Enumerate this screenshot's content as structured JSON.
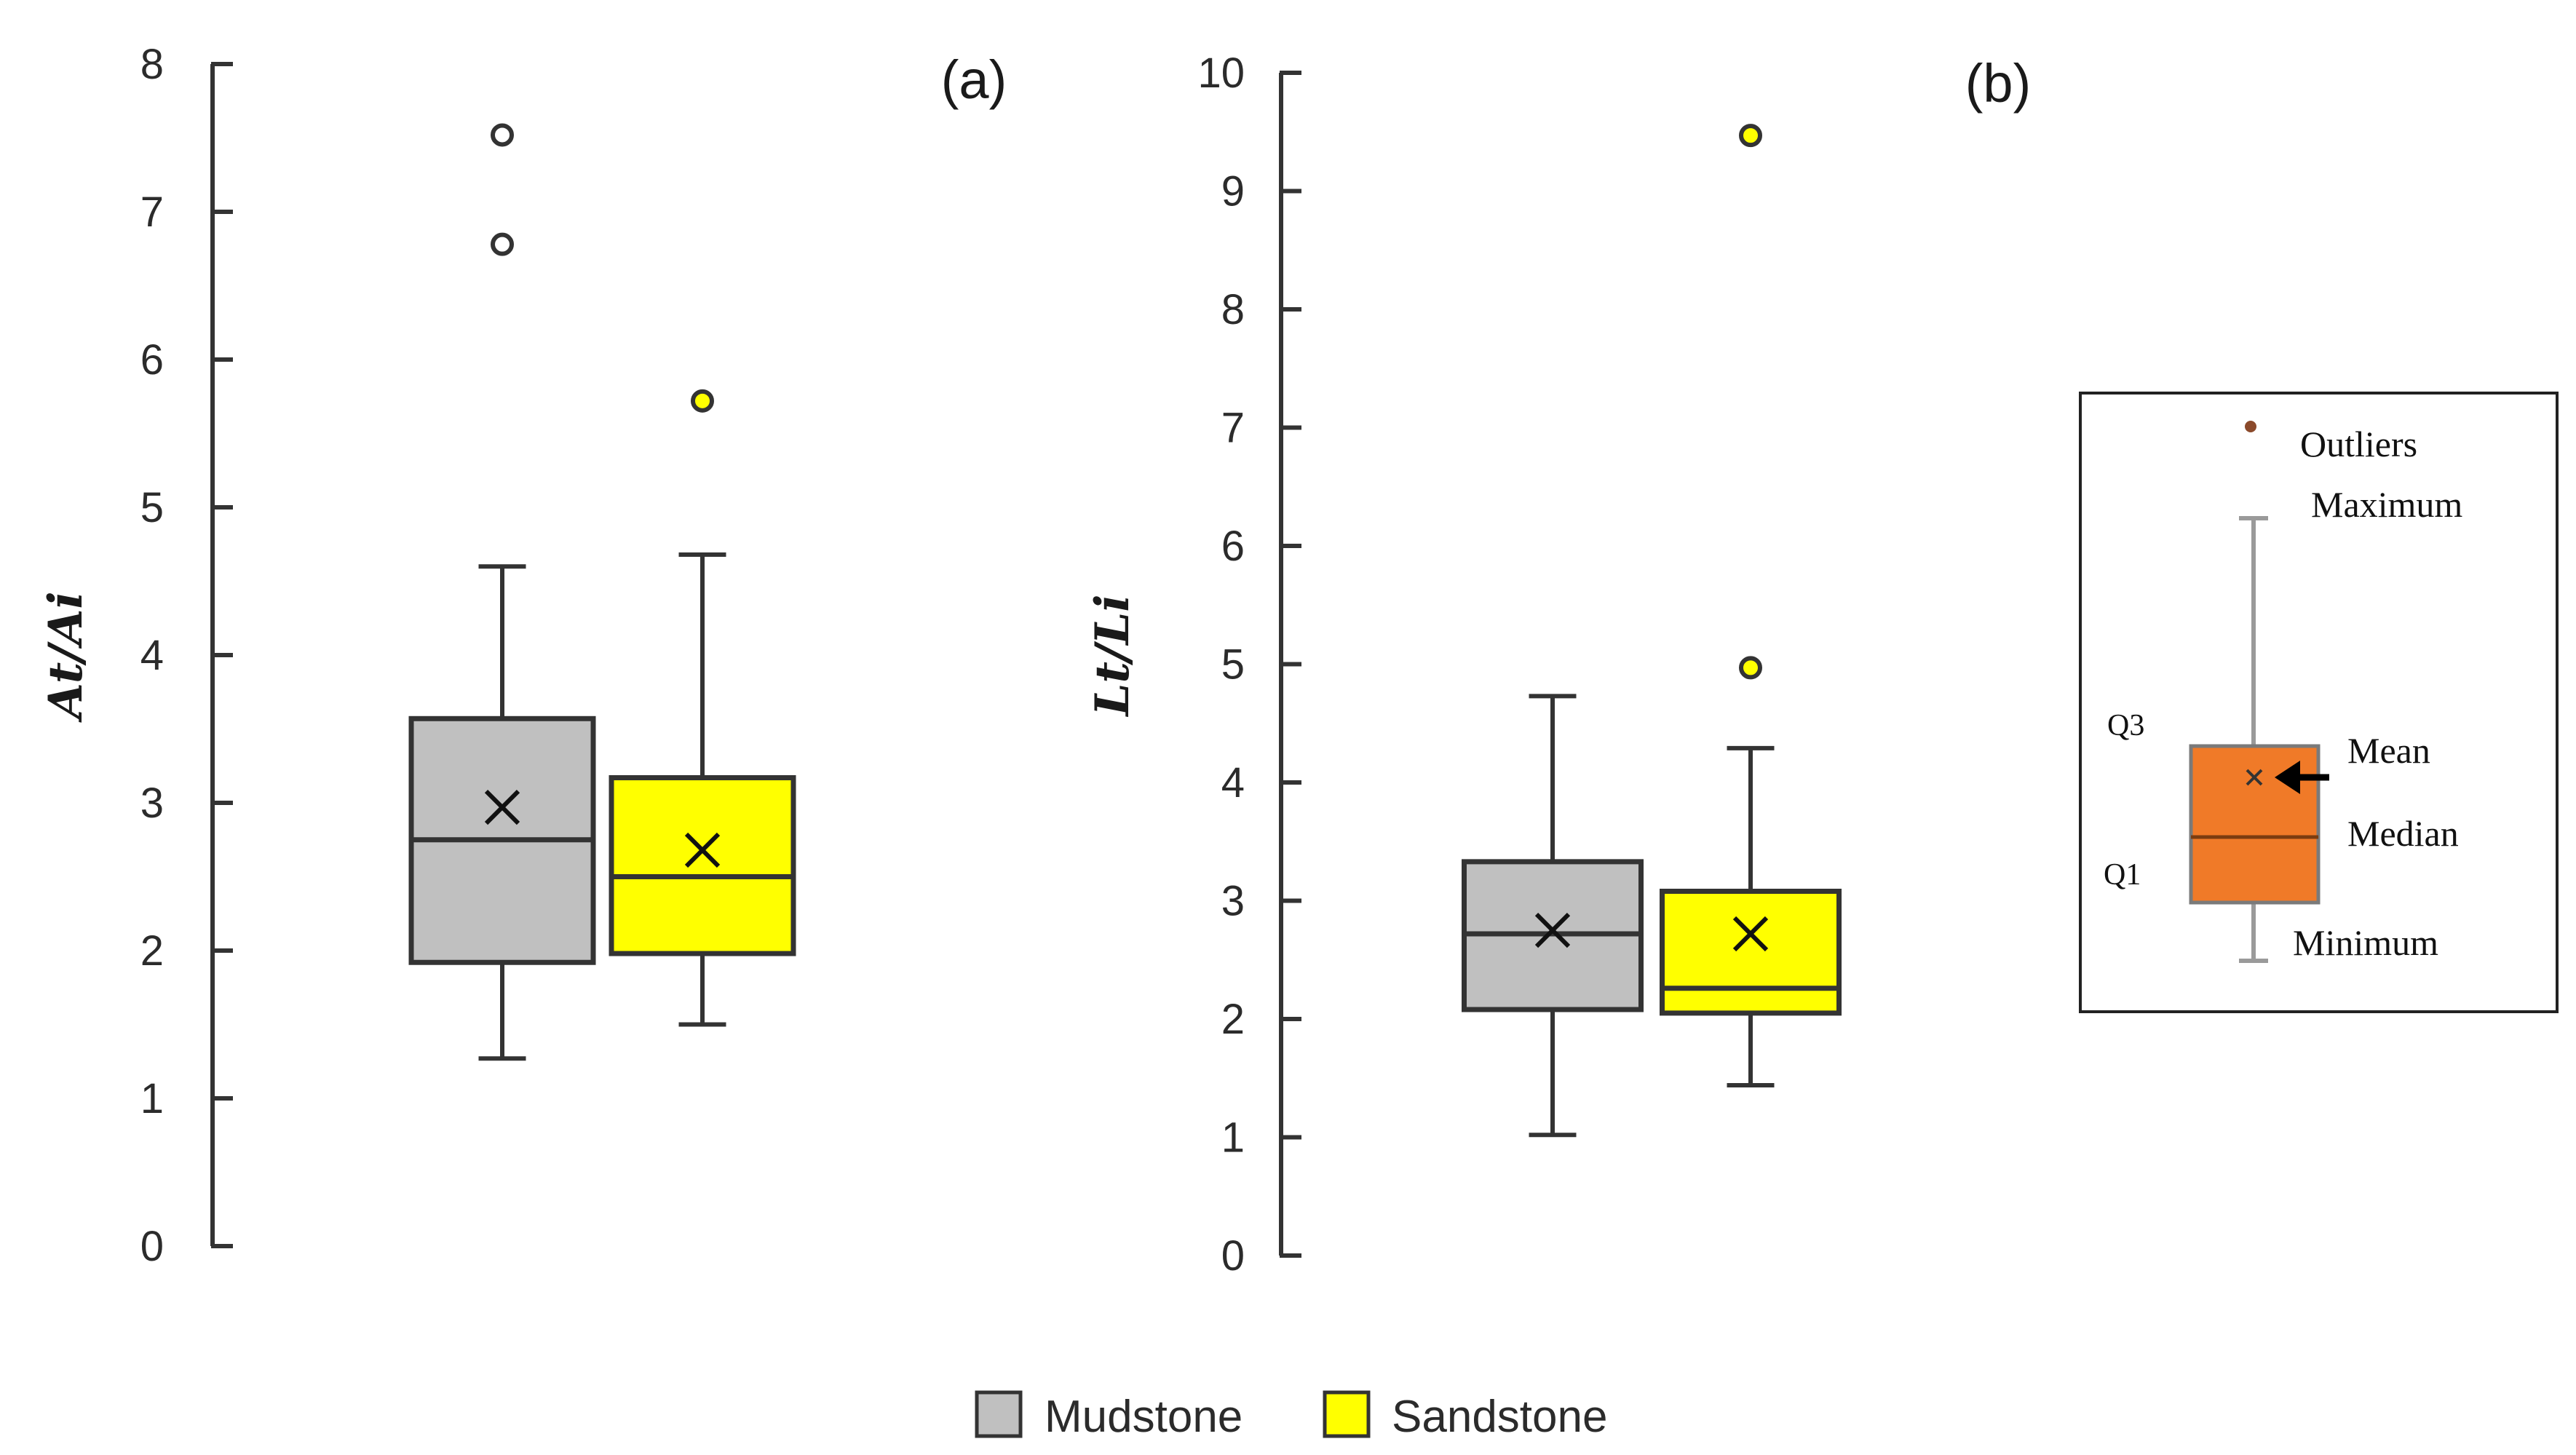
{
  "chart_data": [
    {
      "type": "box",
      "panel_label": "(a)",
      "ylabel": "At/Ai",
      "ylim": [
        0,
        8
      ],
      "yticks": [
        "0",
        "1",
        "2",
        "3",
        "4",
        "5",
        "6",
        "7",
        "8"
      ],
      "series": [
        {
          "name": "Mudstone",
          "min": 1.27,
          "q1": 1.92,
          "median": 2.75,
          "q3": 3.57,
          "max": 4.6,
          "mean": 2.97,
          "outliers": [
            6.78,
            7.52
          ]
        },
        {
          "name": "Sandstone",
          "min": 1.5,
          "q1": 1.98,
          "median": 2.5,
          "q3": 3.17,
          "max": 4.68,
          "mean": 2.68,
          "outliers": [
            5.72
          ]
        }
      ]
    },
    {
      "type": "box",
      "panel_label": "(b)",
      "ylabel": "Lt/Li",
      "ylim": [
        0,
        10
      ],
      "yticks": [
        "0",
        "1",
        "2",
        "3",
        "4",
        "5",
        "6",
        "7",
        "8",
        "9",
        "10"
      ],
      "series": [
        {
          "name": "Mudstone",
          "min": 1.02,
          "q1": 2.08,
          "median": 2.72,
          "q3": 3.33,
          "max": 4.73,
          "mean": 2.75,
          "outliers": []
        },
        {
          "name": "Sandstone",
          "min": 1.44,
          "q1": 2.05,
          "median": 2.26,
          "q3": 3.08,
          "max": 4.29,
          "mean": 2.72,
          "outliers": [
            4.97,
            9.47
          ]
        }
      ]
    }
  ],
  "legend": {
    "items": [
      {
        "label": "Mudstone",
        "color": "#c0c0c0"
      },
      {
        "label": "Sandstone",
        "color": "#ffff00"
      }
    ]
  },
  "key": {
    "outliers": "Outliers",
    "maximum": "Maximum",
    "q3": "Q3",
    "mean": "Mean",
    "median": "Median",
    "q1": "Q1",
    "minimum": "Minimum",
    "box_color": "#f07a28"
  },
  "colors": {
    "mudstone": "#c0c0c0",
    "sandstone": "#ffff00",
    "axis": "#333333"
  }
}
